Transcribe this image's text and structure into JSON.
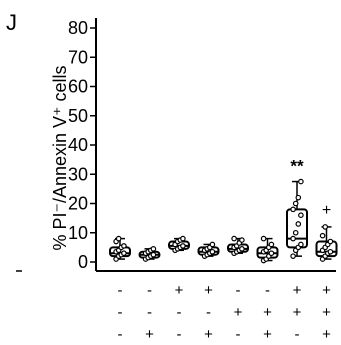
{
  "chart_data": {
    "type": "box",
    "panel_label": "J",
    "ylabel": "% PI⁻/Annexin V⁺ cells",
    "ylim": [
      0,
      80
    ],
    "yticks": [
      0,
      10,
      20,
      30,
      40,
      50,
      60,
      70,
      80
    ],
    "grid": false,
    "treatment_rows": [
      [
        "-",
        "-",
        "+",
        "+",
        "-",
        "-",
        "+",
        "+"
      ],
      [
        "-",
        "-",
        "-",
        "-",
        "+",
        "+",
        "+",
        "+"
      ],
      [
        "-",
        "+",
        "-",
        "+",
        "-",
        "+",
        "-",
        "+"
      ]
    ],
    "boxes": [
      {
        "whisker_low": 1,
        "q1": 2,
        "median": 3,
        "q3": 5,
        "whisker_high": 8,
        "points": [
          1,
          2,
          2.5,
          3,
          3.5,
          4,
          5,
          5.5,
          7,
          8
        ]
      },
      {
        "whisker_low": 1,
        "q1": 1.5,
        "median": 2.5,
        "q3": 3.5,
        "whisker_high": 4.5,
        "points": [
          1,
          1.5,
          2,
          2.5,
          3,
          3.5,
          4,
          4.5
        ]
      },
      {
        "whisker_low": 4,
        "q1": 4.5,
        "median": 5.5,
        "q3": 7,
        "whisker_high": 8,
        "points": [
          4,
          4.5,
          5,
          5.5,
          6,
          7,
          7.5,
          8
        ]
      },
      {
        "whisker_low": 2,
        "q1": 2.5,
        "median": 3.5,
        "q3": 5,
        "whisker_high": 6,
        "points": [
          2,
          2.5,
          3,
          3.5,
          4,
          4.5,
          5,
          6
        ]
      },
      {
        "whisker_low": 3,
        "q1": 3.5,
        "median": 4.5,
        "q3": 6,
        "whisker_high": 8,
        "points": [
          3,
          3.5,
          4,
          4.5,
          5,
          5.5,
          6.5,
          7.5,
          8
        ]
      },
      {
        "whisker_low": 0.5,
        "q1": 1.5,
        "median": 3,
        "q3": 5,
        "whisker_high": 8,
        "points": [
          0.5,
          1,
          2,
          3,
          3.5,
          4,
          5,
          6,
          8
        ]
      },
      {
        "whisker_low": 2,
        "q1": 5,
        "median": 8,
        "q3": 18,
        "whisker_high": 27.5,
        "points": [
          2,
          4,
          5,
          6,
          8,
          10,
          13,
          16,
          18,
          20,
          22,
          27.5
        ]
      },
      {
        "whisker_low": 1,
        "q1": 2,
        "median": 3.5,
        "q3": 7,
        "whisker_high": 12,
        "points": [
          1,
          2,
          3,
          3.5,
          4,
          5,
          6,
          7,
          9,
          12
        ]
      }
    ],
    "annotations": [
      {
        "group": 7,
        "text": "**",
        "y": 31
      },
      {
        "group": 8,
        "text": "+",
        "y": 16
      }
    ]
  }
}
